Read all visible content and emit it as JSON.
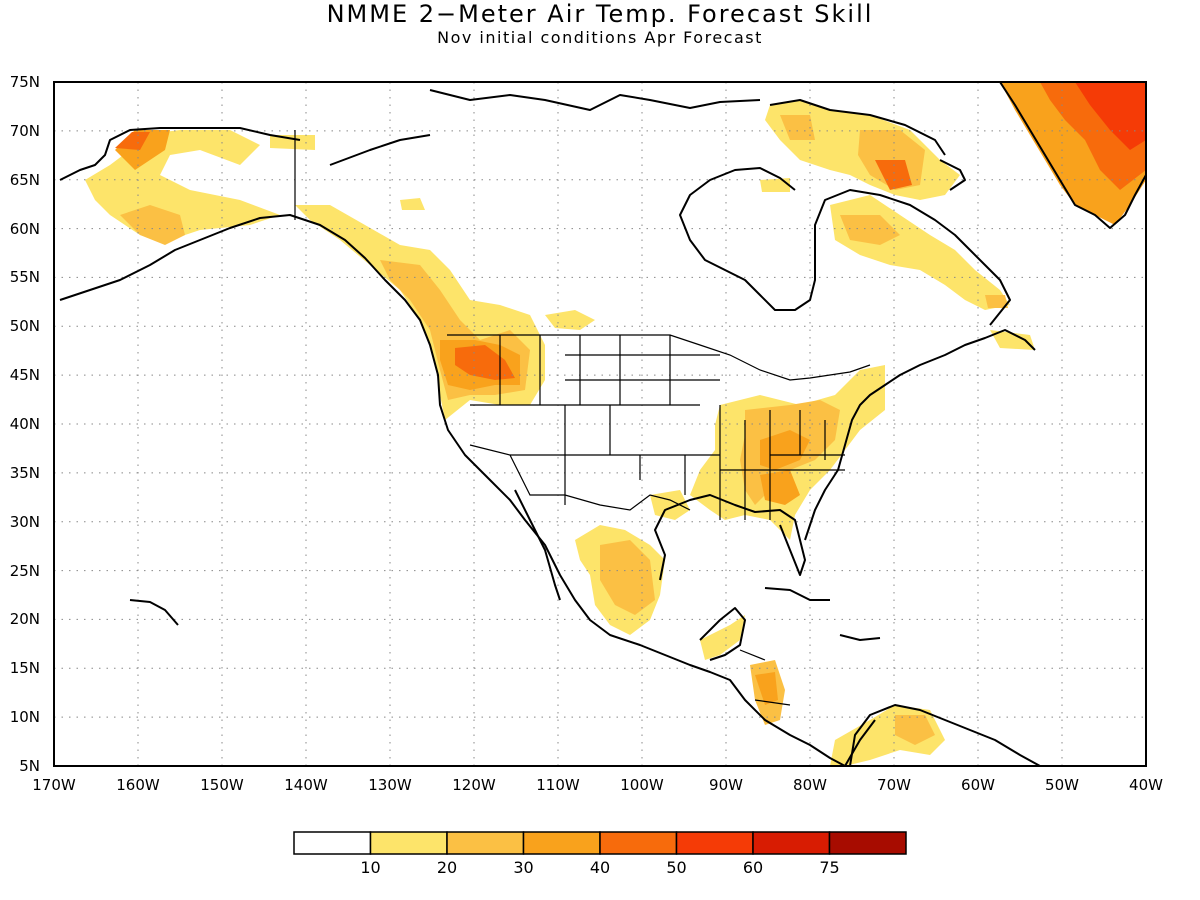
{
  "title": "NMME 2−Meter Air Temp. Forecast Skill",
  "subtitle": "Nov initial conditions  Apr Forecast",
  "map": {
    "lon_range": [
      -170,
      -40
    ],
    "lat_range": [
      5,
      75
    ],
    "lat_labels": [
      "5N",
      "10N",
      "15N",
      "20N",
      "25N",
      "30N",
      "35N",
      "40N",
      "45N",
      "50N",
      "55N",
      "60N",
      "65N",
      "70N",
      "75N"
    ],
    "lon_labels": [
      "170W",
      "160W",
      "150W",
      "140W",
      "130W",
      "120W",
      "110W",
      "100W",
      "90W",
      "80W",
      "70W",
      "60W",
      "50W",
      "40W"
    ]
  },
  "colorbar": {
    "colors": [
      "#ffffff",
      "#fde46a",
      "#fbc044",
      "#f9a21c",
      "#f76b0c",
      "#f53b06",
      "#d81c02",
      "#a70c00"
    ],
    "labels": [
      "10",
      "20",
      "30",
      "40",
      "50",
      "60",
      "75"
    ]
  }
}
